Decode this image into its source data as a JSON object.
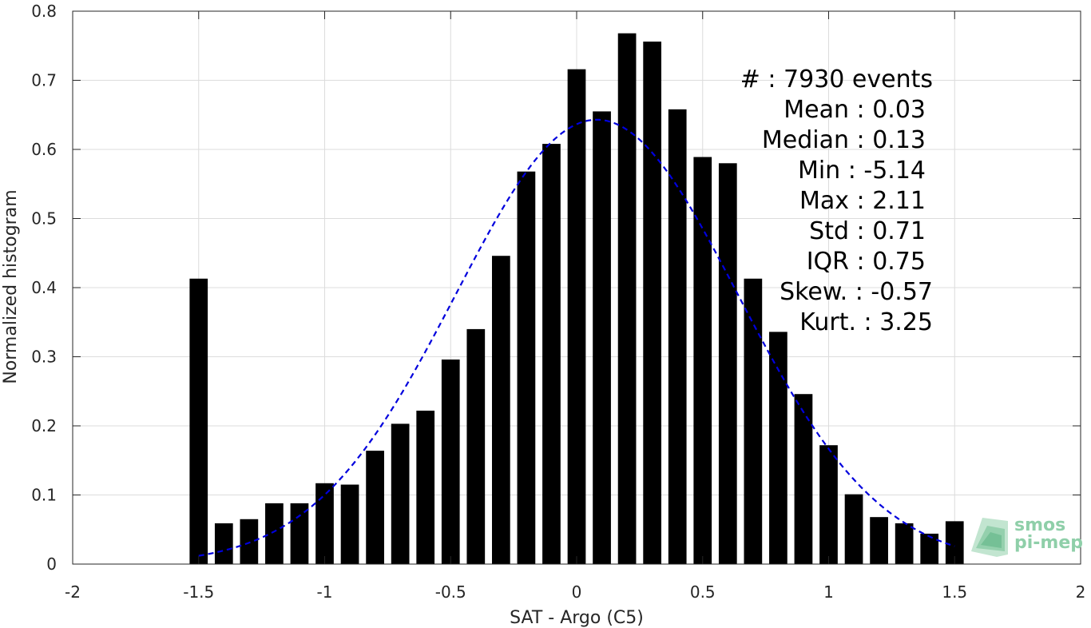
{
  "chart_data": {
    "type": "bar",
    "xlabel": "SAT - Argo (C5)",
    "ylabel": "Normalized histogram",
    "xlim": [
      -2,
      2
    ],
    "ylim": [
      0,
      0.8
    ],
    "xticks": [
      "-2",
      "-1.5",
      "-1",
      "-0.5",
      "0",
      "0.5",
      "1",
      "1.5",
      "2"
    ],
    "yticks": [
      "0",
      "0.1",
      "0.2",
      "0.3",
      "0.4",
      "0.5",
      "0.6",
      "0.7",
      "0.8"
    ],
    "grid": true,
    "bar_color": "#000000",
    "bars": {
      "x": [
        -1.5,
        -1.4,
        -1.3,
        -1.2,
        -1.1,
        -1.0,
        -0.9,
        -0.8,
        -0.7,
        -0.6,
        -0.5,
        -0.4,
        -0.3,
        -0.2,
        -0.1,
        0.0,
        0.1,
        0.2,
        0.3,
        0.4,
        0.5,
        0.6,
        0.7,
        0.8,
        0.9,
        1.0,
        1.1,
        1.2,
        1.3,
        1.4,
        1.5
      ],
      "values": [
        0.413,
        0.059,
        0.065,
        0.088,
        0.088,
        0.117,
        0.115,
        0.164,
        0.203,
        0.222,
        0.296,
        0.34,
        0.446,
        0.568,
        0.608,
        0.716,
        0.655,
        0.768,
        0.756,
        0.658,
        0.589,
        0.58,
        0.413,
        0.336,
        0.246,
        0.172,
        0.101,
        0.068,
        0.059,
        0.044,
        0.062
      ]
    },
    "fit_curve": {
      "style": "dashed",
      "color": "#0000dd",
      "mean": 0.08,
      "std": 0.56,
      "peak": 0.643,
      "x_range": [
        -1.5,
        1.5
      ]
    },
    "stats": [
      "#  : 7930 events",
      "Mean : 0.03",
      "Median : 0.13",
      "Min : -5.14",
      "Max : 2.11",
      "Std : 0.71",
      "IQR : 0.75",
      "Skew. : -0.57",
      "Kurt. : 3.25"
    ]
  },
  "logo": {
    "line1": "smos",
    "line2": "pi-mep",
    "color": "#8fcfa9"
  }
}
